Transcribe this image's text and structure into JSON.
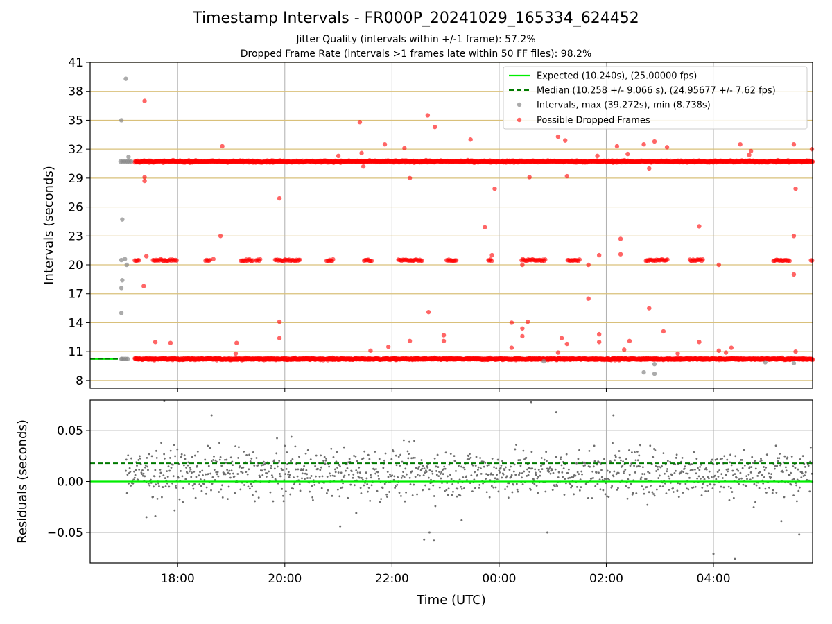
{
  "title": "Timestamp Intervals - FR000P_20241029_165334_624452",
  "subtitle_1": "Jitter Quality (intervals within +/-1 frame): 57.2%",
  "subtitle_2": "Dropped Frame Rate (intervals >1 frames late within 50 FF files): 98.2%",
  "colors": {
    "expected": "#00ee00",
    "median": "#007a00",
    "intervals": "#888888",
    "dropped": "#ff0000",
    "hgrid_top": "#d9c07a",
    "grid": "#b0b0b0",
    "residual_points": "#6e6e6e"
  },
  "chart_data": [
    {
      "type": "scatter",
      "panel": "top",
      "ylabel": "Intervals (seconds)",
      "xlabel": "",
      "xlim": [
        "16:22",
        "05:51"
      ],
      "ylim": [
        7.2,
        41
      ],
      "yticks": [
        8,
        11,
        14,
        17,
        20,
        23,
        26,
        29,
        32,
        35,
        38,
        41
      ],
      "ytick_labels": [
        "8",
        "11",
        "14",
        "17",
        "20",
        "23",
        "26",
        "29",
        "32",
        "35",
        "38",
        "41"
      ],
      "grid": true,
      "legend_placement": "upper right",
      "legend": [
        "Expected (10.240s), (25.00000 fps)",
        "Median (10.258 +/- 9.066 s), (24.95677 +/- 7.62 fps)",
        "Intervals, max (39.272s), min (8.738s)",
        "Possible Dropped Frames"
      ],
      "expected": 10.24,
      "median": 10.258,
      "x_start": "16:53",
      "x_end": "05:51",
      "bands": [
        {
          "name": "Possible Dropped Frames",
          "y": 10.24,
          "from": "17:12",
          "to": "05:51"
        },
        {
          "name": "Possible Dropped Frames",
          "y": 30.72,
          "from": "17:12",
          "to": "05:51"
        },
        {
          "name": "Possible Dropped Frames",
          "y": 20.48,
          "from": "17:12",
          "to": "05:51",
          "sparse": true
        }
      ],
      "gray_points": [
        [
          "16:57",
          10.24
        ],
        [
          "16:58",
          10.24
        ],
        [
          "17:00",
          10.24
        ],
        [
          "17:02",
          10.24
        ],
        [
          "17:04",
          10.24
        ],
        [
          "16:56",
          30.72
        ],
        [
          "16:58",
          30.72
        ],
        [
          "17:00",
          30.72
        ],
        [
          "17:02",
          30.72
        ],
        [
          "17:04",
          30.72
        ],
        [
          "17:06",
          30.72
        ],
        [
          "17:08",
          30.72
        ],
        [
          "17:05",
          31.2
        ],
        [
          "17:02",
          39.3
        ],
        [
          "16:57",
          35.0
        ],
        [
          "16:58",
          24.7
        ],
        [
          "16:57",
          20.5
        ],
        [
          "17:01",
          20.6
        ],
        [
          "17:03",
          20.0
        ],
        [
          "16:58",
          18.4
        ],
        [
          "16:57",
          17.6
        ],
        [
          "16:57",
          15.0
        ],
        [
          "02:42",
          8.85
        ],
        [
          "02:54",
          8.7
        ],
        [
          "02:54",
          9.7
        ],
        [
          "00:50",
          10.0
        ],
        [
          "04:58",
          9.9
        ],
        [
          "05:30",
          9.8
        ]
      ],
      "red_points": [
        [
          "17:23",
          37.0
        ],
        [
          "17:23",
          29.1
        ],
        [
          "17:23",
          28.7
        ],
        [
          "17:22",
          17.8
        ],
        [
          "17:25",
          20.9
        ],
        [
          "17:35",
          12.0
        ],
        [
          "17:52",
          11.9
        ],
        [
          "18:40",
          20.6
        ],
        [
          "18:48",
          23.0
        ],
        [
          "18:50",
          32.3
        ],
        [
          "19:05",
          10.8
        ],
        [
          "19:06",
          11.9
        ],
        [
          "19:54",
          26.9
        ],
        [
          "19:54",
          14.1
        ],
        [
          "19:54",
          12.4
        ],
        [
          "21:00",
          31.3
        ],
        [
          "21:24",
          34.8
        ],
        [
          "21:26",
          31.6
        ],
        [
          "21:28",
          30.2
        ],
        [
          "21:36",
          11.1
        ],
        [
          "21:52",
          32.5
        ],
        [
          "21:56",
          11.5
        ],
        [
          "22:14",
          32.1
        ],
        [
          "22:20",
          29.0
        ],
        [
          "22:20",
          12.1
        ],
        [
          "22:40",
          35.5
        ],
        [
          "22:41",
          15.1
        ],
        [
          "22:48",
          34.3
        ],
        [
          "22:58",
          12.7
        ],
        [
          "22:58",
          12.1
        ],
        [
          "23:28",
          33.0
        ],
        [
          "23:44",
          23.9
        ],
        [
          "23:52",
          21.0
        ],
        [
          "23:55",
          27.9
        ],
        [
          "00:14",
          14.0
        ],
        [
          "00:14",
          11.4
        ],
        [
          "00:26",
          13.4
        ],
        [
          "00:26",
          12.6
        ],
        [
          "00:26",
          20.0
        ],
        [
          "00:32",
          14.1
        ],
        [
          "00:34",
          29.1
        ],
        [
          "01:06",
          33.3
        ],
        [
          "01:06",
          10.9
        ],
        [
          "01:10",
          12.4
        ],
        [
          "01:14",
          32.9
        ],
        [
          "01:16",
          29.2
        ],
        [
          "01:16",
          11.8
        ],
        [
          "01:40",
          16.5
        ],
        [
          "01:40",
          20.0
        ],
        [
          "01:50",
          31.3
        ],
        [
          "01:52",
          21.0
        ],
        [
          "01:52",
          12.8
        ],
        [
          "01:52",
          12.0
        ],
        [
          "02:12",
          32.3
        ],
        [
          "02:16",
          22.7
        ],
        [
          "02:16",
          21.1
        ],
        [
          "02:20",
          11.2
        ],
        [
          "02:24",
          31.5
        ],
        [
          "02:26",
          12.1
        ],
        [
          "02:42",
          32.5
        ],
        [
          "02:48",
          30.0
        ],
        [
          "02:48",
          15.5
        ],
        [
          "02:54",
          32.8
        ],
        [
          "03:04",
          13.1
        ],
        [
          "03:08",
          32.2
        ],
        [
          "03:20",
          10.8
        ],
        [
          "03:44",
          24.0
        ],
        [
          "03:44",
          12.0
        ],
        [
          "04:06",
          11.1
        ],
        [
          "04:06",
          20.0
        ],
        [
          "04:14",
          10.9
        ],
        [
          "04:20",
          11.4
        ],
        [
          "04:30",
          32.5
        ],
        [
          "04:40",
          31.4
        ],
        [
          "04:42",
          31.8
        ],
        [
          "05:30",
          32.5
        ],
        [
          "05:30",
          23.0
        ],
        [
          "05:30",
          19.0
        ],
        [
          "05:32",
          11.0
        ],
        [
          "05:32",
          27.9
        ],
        [
          "05:51",
          32.0
        ]
      ]
    },
    {
      "type": "scatter",
      "panel": "bottom",
      "ylabel": "Residuals (seconds)",
      "xlabel": "Time (UTC)",
      "xlim": [
        "16:22",
        "05:51"
      ],
      "ylim": [
        -0.08,
        0.08
      ],
      "yticks": [
        -0.05,
        0.0,
        0.05
      ],
      "ytick_labels": [
        "−0.05",
        "0.00",
        "0.05"
      ],
      "xticks": [
        "18:00",
        "20:00",
        "22:00",
        "00:00",
        "02:00",
        "04:00"
      ],
      "grid": true,
      "expected_line": 0.0,
      "median_line": 0.018,
      "residual_center": 0.008,
      "residual_spread": 0.012,
      "outliers": [
        [
          "17:45",
          0.079
        ],
        [
          "18:38",
          0.065
        ],
        [
          "17:25",
          -0.035
        ],
        [
          "17:35",
          -0.034
        ],
        [
          "21:02",
          -0.044
        ],
        [
          "21:20",
          -0.031
        ],
        [
          "22:42",
          -0.05
        ],
        [
          "22:47",
          -0.058
        ],
        [
          "22:36",
          -0.057
        ],
        [
          "00:36",
          0.078
        ],
        [
          "00:54",
          -0.05
        ],
        [
          "02:08",
          0.065
        ],
        [
          "04:00",
          -0.071
        ],
        [
          "04:24",
          -0.076
        ],
        [
          "05:16",
          -0.039
        ],
        [
          "05:36",
          -0.052
        ],
        [
          "23:18",
          -0.038
        ],
        [
          "01:04",
          0.068
        ]
      ]
    }
  ]
}
